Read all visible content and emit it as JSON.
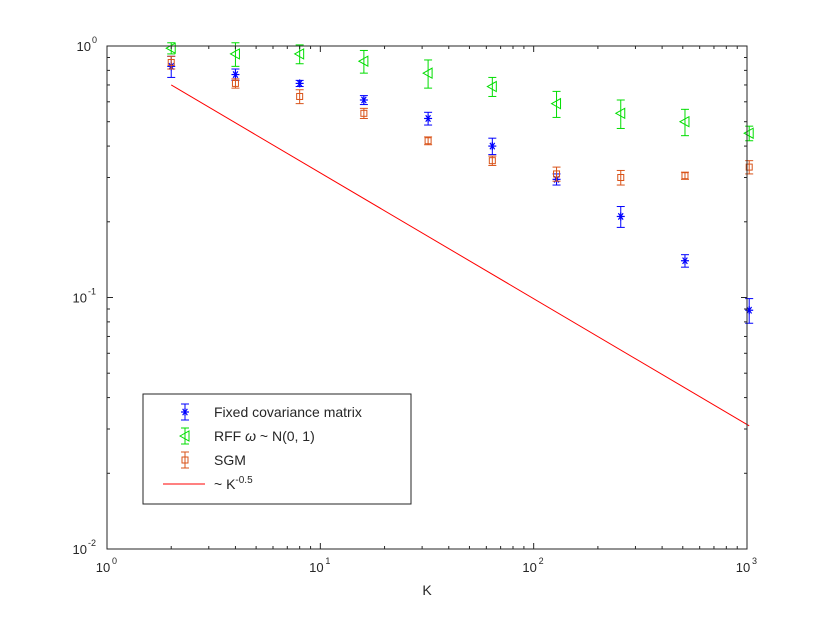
{
  "chart_data": {
    "type": "scatter",
    "title": "",
    "xlabel": "K",
    "ylabel": "",
    "x_scale": "log",
    "y_scale": "log",
    "xlim": [
      1,
      1000
    ],
    "ylim": [
      0.01,
      1
    ],
    "grid": false,
    "legend_position": "bottom-left",
    "x_ticks": [
      {
        "base": "10",
        "exp": "0",
        "value": 1
      },
      {
        "base": "10",
        "exp": "1",
        "value": 10
      },
      {
        "base": "10",
        "exp": "2",
        "value": 100
      },
      {
        "base": "10",
        "exp": "3",
        "value": 1000
      }
    ],
    "y_ticks": [
      {
        "base": "10",
        "exp": "-2",
        "value": 0.01
      },
      {
        "base": "10",
        "exp": "-1",
        "value": 0.1
      },
      {
        "base": "10",
        "exp": "0",
        "value": 1
      }
    ],
    "series": [
      {
        "name": "Fixed covariance matrix",
        "marker": "asterisk",
        "color": "#0000ff",
        "x": [
          2,
          4,
          8,
          16,
          32,
          64,
          128,
          256,
          512,
          1024
        ],
        "y": [
          0.83,
          0.77,
          0.71,
          0.61,
          0.515,
          0.4,
          0.295,
          0.21,
          0.14,
          0.089
        ],
        "err": [
          0.08,
          0.04,
          0.02,
          0.025,
          0.03,
          0.03,
          0.015,
          0.02,
          0.008,
          0.01
        ]
      },
      {
        "name_prefix": "RFF ",
        "name_symbol": "ω",
        "name_suffix": " ~ N(0, 1)",
        "marker": "triangle-left",
        "color": "#00dd00",
        "x": [
          2,
          4,
          8,
          16,
          32,
          64,
          128,
          256,
          512,
          1024
        ],
        "y": [
          0.98,
          0.93,
          0.93,
          0.87,
          0.78,
          0.69,
          0.59,
          0.54,
          0.5,
          0.45
        ],
        "err": [
          0.05,
          0.1,
          0.08,
          0.09,
          0.1,
          0.06,
          0.07,
          0.07,
          0.06,
          0.03
        ]
      },
      {
        "name": "SGM",
        "marker": "square",
        "color": "#d95319",
        "x": [
          2,
          4,
          8,
          16,
          32,
          64,
          128,
          256,
          512,
          1024
        ],
        "y": [
          0.86,
          0.71,
          0.63,
          0.54,
          0.42,
          0.35,
          0.31,
          0.3,
          0.305,
          0.33
        ],
        "err": [
          0.05,
          0.03,
          0.04,
          0.025,
          0.015,
          0.015,
          0.02,
          0.02,
          0.01,
          0.02
        ]
      },
      {
        "name_prefix": "~ K",
        "name_exp": "-0.5",
        "type": "line",
        "color": "#ff0000",
        "x": [
          2,
          1024
        ],
        "y": [
          0.7,
          0.0309
        ]
      }
    ]
  }
}
